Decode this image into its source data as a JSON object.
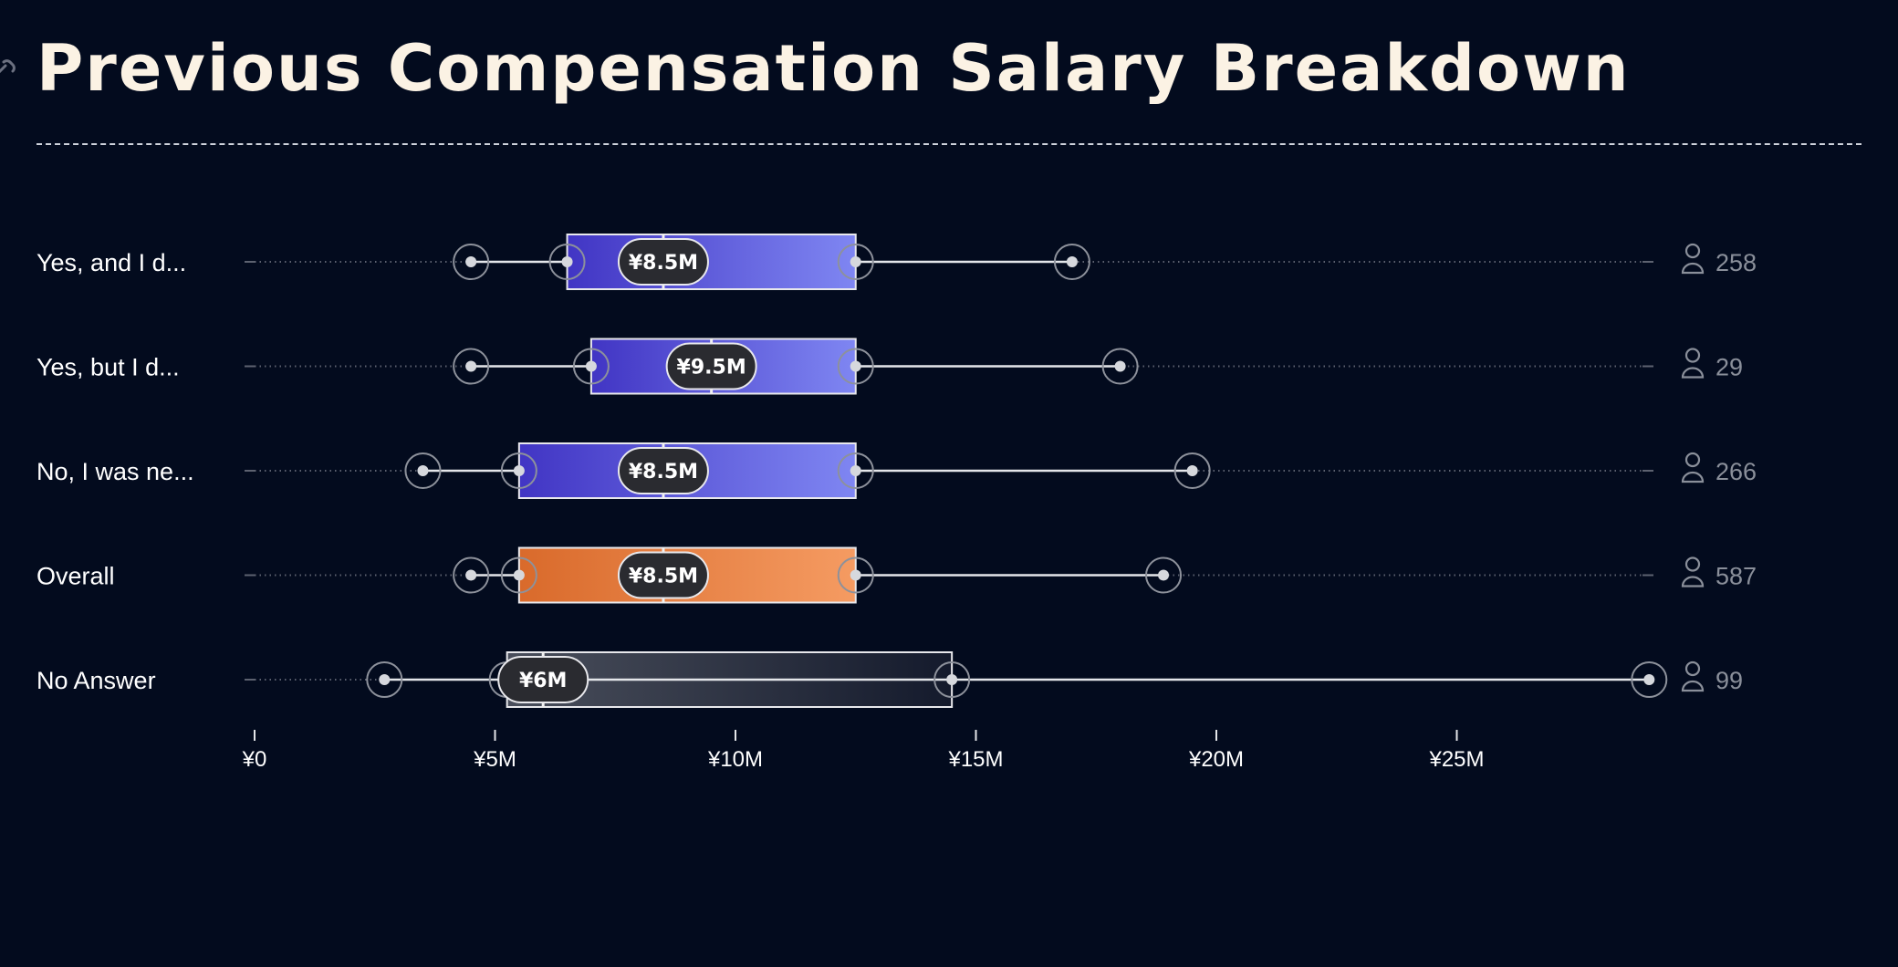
{
  "header": {
    "title": "Previous Compensation Salary Breakdown"
  },
  "colors": {
    "background": "#030b1e",
    "title": "#fbf2e4",
    "series_gradient": [
      "#4135c4",
      "#7f86f2"
    ],
    "overall_gradient": [
      "#d96a2b",
      "#f59b62"
    ],
    "no_answer_gradient": [
      "#4a4f5c",
      "#141a2c"
    ],
    "count": "#8a8f9a"
  },
  "icons": {
    "header": "link-icon",
    "count": "person-icon"
  },
  "chart_data": {
    "type": "boxplot",
    "title": "Previous Compensation Salary Breakdown",
    "orientation": "horizontal",
    "xlim": [
      0,
      29
    ],
    "x_ticks": [
      0,
      5,
      10,
      15,
      20,
      25
    ],
    "x_tick_labels": [
      "¥0",
      "¥5M",
      "¥10M",
      "¥15M",
      "¥20M",
      "¥25M"
    ],
    "unit": "¥M",
    "series": [
      {
        "label": "Yes, and I d...",
        "min": 4.5,
        "q1": 6.5,
        "median": 8.5,
        "q3": 12.5,
        "max": 17,
        "median_label": "¥8.5M",
        "count": "258",
        "style": "primary"
      },
      {
        "label": "Yes, but I d...",
        "min": 4.5,
        "q1": 7,
        "median": 9.5,
        "q3": 12.5,
        "max": 18,
        "median_label": "¥9.5M",
        "count": "29",
        "style": "primary"
      },
      {
        "label": "No, I was ne...",
        "min": 3.5,
        "q1": 5.5,
        "median": 8.5,
        "q3": 12.5,
        "max": 19.5,
        "median_label": "¥8.5M",
        "count": "266",
        "style": "primary"
      },
      {
        "label": "Overall",
        "min": 4.5,
        "q1": 5.5,
        "median": 8.5,
        "q3": 12.5,
        "max": 18.9,
        "median_label": "¥8.5M",
        "count": "587",
        "style": "overall"
      },
      {
        "label": "No Answer",
        "min": 2.7,
        "q1": 5.25,
        "median": 6,
        "q3": 14.5,
        "max": 29,
        "median_label": "¥6M",
        "count": "99",
        "style": "no_answer"
      }
    ]
  }
}
